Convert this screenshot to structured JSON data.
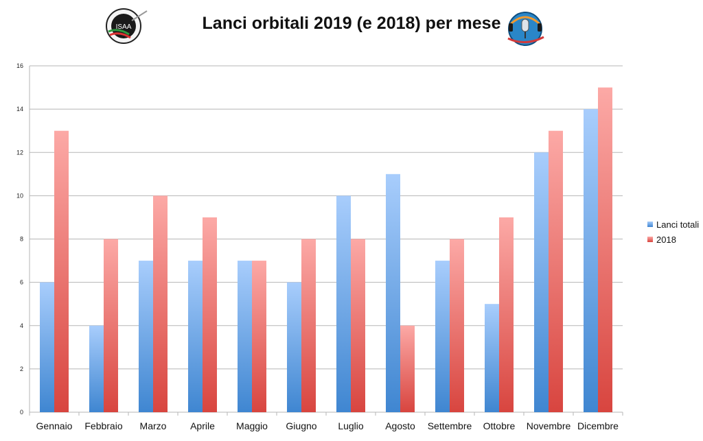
{
  "header": {
    "title": "Lanci orbitali 2019 (e 2018) per mese",
    "logo_left_text": "ISAA"
  },
  "colors": {
    "series1_top": "#a8cdfc",
    "series1_bottom": "#3f86d1",
    "series2_top": "#fca9a6",
    "series2_bottom": "#d8453f",
    "grid": "#b5b5b5"
  },
  "chart_data": {
    "type": "bar",
    "title": "Lanci orbitali 2019 (e 2018) per mese",
    "categories": [
      "Gennaio",
      "Febbraio",
      "Marzo",
      "Aprile",
      "Maggio",
      "Giugno",
      "Luglio",
      "Agosto",
      "Settembre",
      "Ottobre",
      "Novembre",
      "Dicembre"
    ],
    "series": [
      {
        "name": "Lanci totali",
        "values": [
          6,
          4,
          7,
          7,
          7,
          6,
          10,
          11,
          7,
          5,
          12,
          14
        ]
      },
      {
        "name": "2018",
        "values": [
          13,
          8,
          10,
          9,
          7,
          8,
          8,
          4,
          8,
          9,
          13,
          15
        ]
      }
    ],
    "ylim": [
      0,
      16
    ],
    "yticks": [
      0,
      2,
      4,
      6,
      8,
      10,
      12,
      14,
      16
    ],
    "grid": true,
    "legend": "right"
  }
}
